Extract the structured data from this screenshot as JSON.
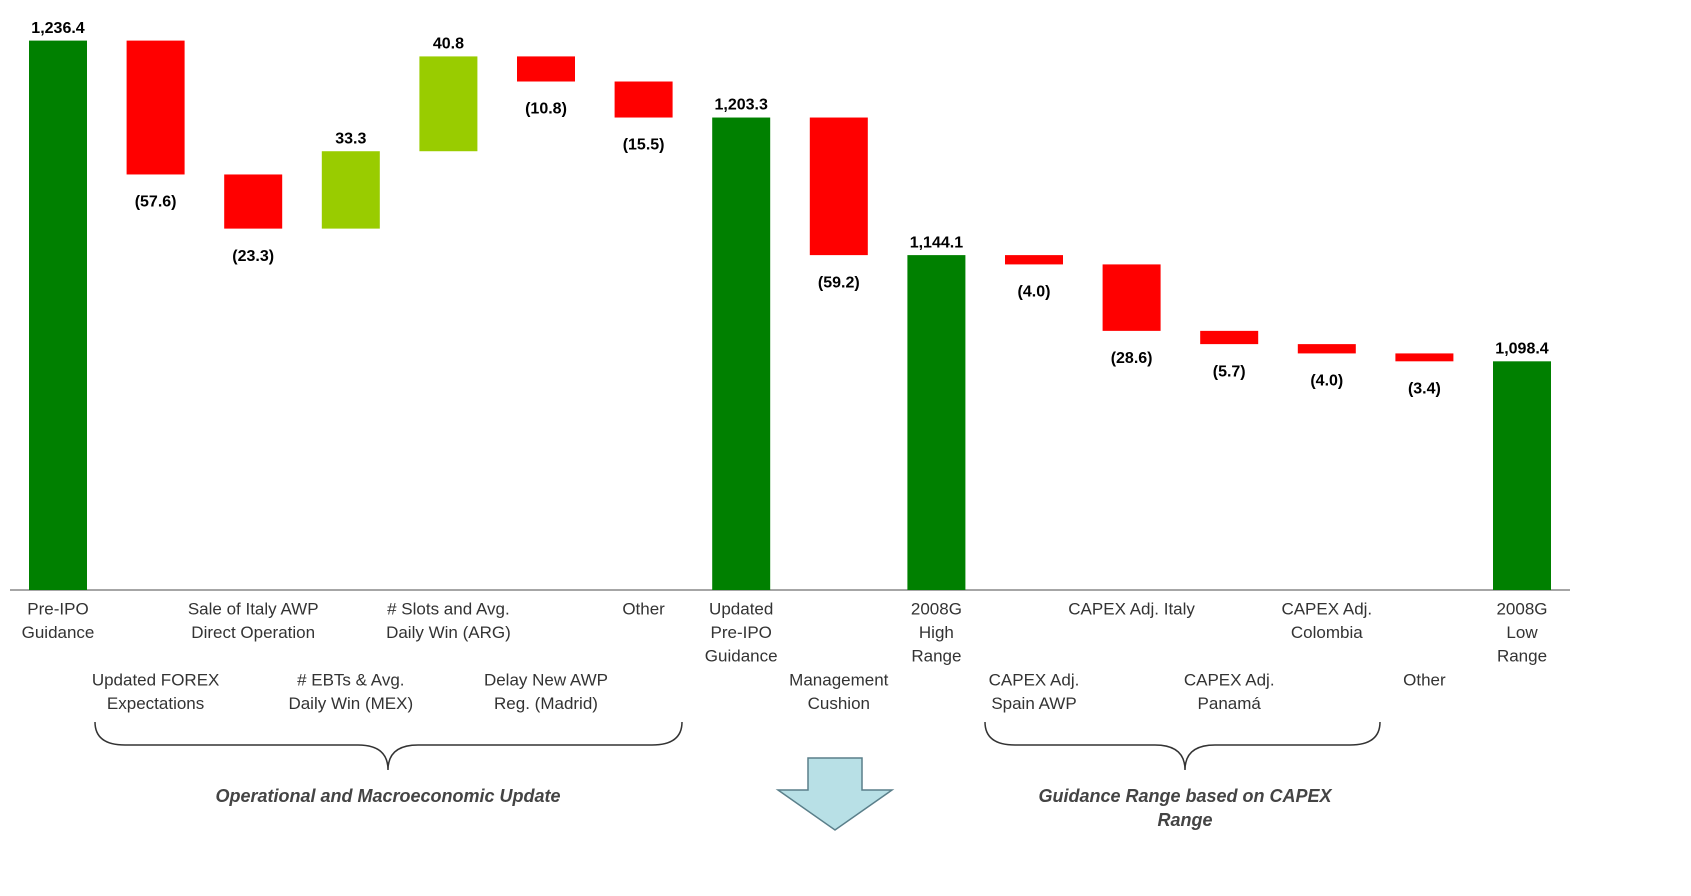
{
  "chart_data": {
    "type": "waterfall",
    "categories": [
      [
        "Pre-IPO",
        "Guidance"
      ],
      [
        "Updated FOREX",
        "Expectations"
      ],
      [
        "Sale of Italy AWP",
        "Direct Operation"
      ],
      [
        "# EBTs & Avg.",
        "Daily Win (MEX)"
      ],
      [
        "# Slots and Avg.",
        "Daily Win (ARG)"
      ],
      [
        "Delay New AWP",
        "Reg. (Madrid)"
      ],
      [
        "Other"
      ],
      [
        "Updated",
        "Pre-IPO",
        "Guidance"
      ],
      [
        "Management",
        "Cushion"
      ],
      [
        "2008G",
        "High",
        "Range"
      ],
      [
        "CAPEX Adj.",
        "Spain AWP"
      ],
      [
        "CAPEX Adj. Italy"
      ],
      [
        "CAPEX Adj.",
        "Panamá"
      ],
      [
        "CAPEX Adj.",
        "Colombia"
      ],
      [
        "Other"
      ],
      [
        "2008G",
        "Low",
        "Range"
      ]
    ],
    "measure": [
      "total",
      "relative",
      "relative",
      "relative",
      "relative",
      "relative",
      "relative",
      "total",
      "relative",
      "total",
      "relative",
      "relative",
      "relative",
      "relative",
      "relative",
      "total"
    ],
    "values": [
      1236.4,
      -57.6,
      -23.3,
      33.3,
      40.8,
      -10.8,
      -15.5,
      1203.3,
      -59.2,
      1144.1,
      -4.0,
      -28.6,
      -5.7,
      -4.0,
      -3.4,
      1098.4
    ],
    "value_labels": [
      "1,236.4",
      "(57.6)",
      "(23.3)",
      "33.3",
      "40.8",
      "(10.8)",
      "(15.5)",
      "1,203.3",
      "(59.2)",
      "1,144.1",
      "(4.0)",
      "(28.6)",
      "(5.7)",
      "(4.0)",
      "(3.4)",
      "1,098.4"
    ],
    "colors": {
      "total": "#008000",
      "increase": "#99cc00",
      "decrease": "#ff0000"
    },
    "ylim": [
      1000,
      1250
    ],
    "groups": [
      {
        "label": [
          "Operational and Macroeconomic Update"
        ]
      },
      {
        "label": [
          "Guidance Range based on CAPEX",
          "Range"
        ]
      }
    ]
  }
}
